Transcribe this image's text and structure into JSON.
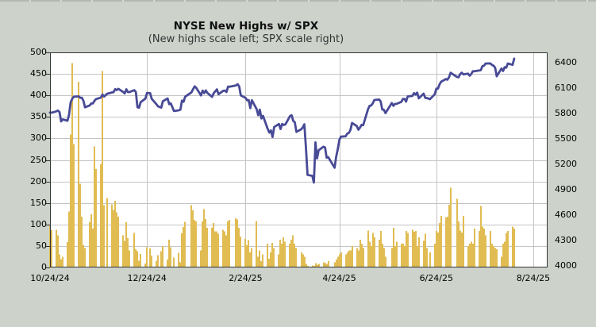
{
  "page": {
    "background": "#cdd3cb"
  },
  "chart_data": {
    "type": "combo",
    "title": "NYSE New Highs w/ SPX",
    "subtitle": "(New highs scale left; SPX scale right)",
    "grid": true,
    "legend": "none",
    "series": [
      {
        "name": "NYSE New Highs",
        "type": "bar",
        "color": "#e0bc52",
        "axis": "left"
      },
      {
        "name": "SPX",
        "type": "line",
        "color": "#484a96",
        "axis": "right"
      }
    ],
    "left_axis": {
      "min": 0,
      "max": 500,
      "ticks": [
        500,
        450,
        400,
        350,
        300,
        250,
        200,
        150,
        100,
        50,
        0
      ]
    },
    "right_axis": {
      "min": 3980,
      "max": 6520,
      "ticks": [
        6400,
        6100,
        5800,
        5500,
        5200,
        4900,
        4600,
        4300,
        4000
      ]
    },
    "x_axis": {
      "start": "10/24/24",
      "end": "9/2/25",
      "tick_labels": [
        "10/24/24",
        "12/24/24",
        "2/24/25",
        "4/24/25",
        "6/24/25",
        "8/24/25"
      ]
    },
    "dates": [
      "10/24/24",
      "10/25/24",
      "10/28/24",
      "10/29/24",
      "10/30/24",
      "10/31/24",
      "11/1/24",
      "11/4/24",
      "11/5/24",
      "11/6/24",
      "11/7/24",
      "11/8/24",
      "11/11/24",
      "11/12/24",
      "11/13/24",
      "11/14/24",
      "11/15/24",
      "11/18/24",
      "11/19/24",
      "11/20/24",
      "11/21/24",
      "11/22/24",
      "11/25/24",
      "11/26/24",
      "11/27/24",
      "11/29/24",
      "12/2/24",
      "12/3/24",
      "12/4/24",
      "12/5/24",
      "12/6/24",
      "12/9/24",
      "12/10/24",
      "12/11/24",
      "12/12/24",
      "12/13/24",
      "12/16/24",
      "12/17/24",
      "12/18/24",
      "12/19/24",
      "12/20/24",
      "12/23/24",
      "12/24/24",
      "12/26/24",
      "12/27/24",
      "12/30/24",
      "12/31/24",
      "1/2/25",
      "1/3/25",
      "1/6/25",
      "1/7/25",
      "1/8/25",
      "1/10/25",
      "1/13/25",
      "1/14/25",
      "1/15/25",
      "1/16/25",
      "1/17/25",
      "1/21/25",
      "1/22/25",
      "1/23/25",
      "1/24/25",
      "1/27/25",
      "1/28/25",
      "1/29/25",
      "1/30/25",
      "1/31/25",
      "2/3/25",
      "2/4/25",
      "2/5/25",
      "2/6/25",
      "2/7/25",
      "2/10/25",
      "2/11/25",
      "2/12/25",
      "2/13/25",
      "2/14/25",
      "2/18/25",
      "2/19/25",
      "2/20/25",
      "2/21/25",
      "2/24/25",
      "2/25/25",
      "2/26/25",
      "2/27/25",
      "2/28/25",
      "3/3/25",
      "3/4/25",
      "3/5/25",
      "3/6/25",
      "3/7/25",
      "3/10/25",
      "3/11/25",
      "3/12/25",
      "3/13/25",
      "3/14/25",
      "3/17/25",
      "3/18/25",
      "3/19/25",
      "3/20/25",
      "3/21/25",
      "3/24/25",
      "3/25/25",
      "3/26/25",
      "3/27/25",
      "3/28/25",
      "3/31/25",
      "4/1/25",
      "4/2/25",
      "4/3/25",
      "4/4/25",
      "4/7/25",
      "4/8/25",
      "4/9/25",
      "4/10/25",
      "4/11/25",
      "4/14/25",
      "4/15/25",
      "4/16/25",
      "4/17/25",
      "4/21/25",
      "4/22/25",
      "4/23/25",
      "4/24/25",
      "4/25/25",
      "4/28/25",
      "4/29/25",
      "4/30/25",
      "5/1/25",
      "5/2/25",
      "5/5/25",
      "5/6/25",
      "5/7/25",
      "5/8/25",
      "5/9/25",
      "5/12/25",
      "5/13/25",
      "5/14/25",
      "5/15/25",
      "5/16/25",
      "5/19/25",
      "5/20/25",
      "5/21/25",
      "5/22/25",
      "5/23/25",
      "5/27/25",
      "5/28/25",
      "5/29/25",
      "5/30/25",
      "6/2/25",
      "6/3/25",
      "6/4/25",
      "6/5/25",
      "6/6/25",
      "6/9/25",
      "6/10/25",
      "6/11/25",
      "6/12/25",
      "6/13/25",
      "6/16/25",
      "6/17/25",
      "6/18/25",
      "6/20/25",
      "6/23/25",
      "6/24/25",
      "6/25/25",
      "6/26/25",
      "6/27/25",
      "6/30/25",
      "7/1/25",
      "7/2/25",
      "7/3/25",
      "7/7/25",
      "7/8/25",
      "7/9/25",
      "7/10/25",
      "7/11/25",
      "7/14/25",
      "7/15/25",
      "7/16/25",
      "7/17/25",
      "7/18/25",
      "7/21/25",
      "7/22/25",
      "7/23/25",
      "7/24/25",
      "7/25/25",
      "7/28/25",
      "7/29/25",
      "7/30/25",
      "7/31/25",
      "8/1/25",
      "8/4/25",
      "8/5/25",
      "8/6/25",
      "8/7/25",
      "8/8/25",
      "8/11/25",
      "8/12/25"
    ],
    "new_highs": [
      100,
      87,
      88,
      75,
      30,
      19,
      25,
      59,
      130,
      309,
      475,
      287,
      432,
      195,
      118,
      53,
      45,
      105,
      124,
      90,
      281,
      229,
      240,
      457,
      145,
      161,
      147,
      134,
      155,
      128,
      118,
      75,
      62,
      105,
      68,
      40,
      80,
      42,
      38,
      16,
      31,
      9,
      47,
      44,
      28,
      16,
      29,
      38,
      50,
      18,
      65,
      47,
      23,
      34,
      12,
      79,
      94,
      106,
      145,
      133,
      111,
      107,
      40,
      107,
      136,
      113,
      92,
      92,
      103,
      84,
      84,
      78,
      88,
      84,
      75,
      107,
      111,
      114,
      112,
      92,
      72,
      66,
      52,
      64,
      35,
      45,
      108,
      25,
      40,
      15,
      30,
      55,
      20,
      35,
      57,
      45,
      30,
      65,
      55,
      70,
      60,
      55,
      65,
      75,
      55,
      45,
      35,
      30,
      25,
      8,
      4,
      5,
      4,
      10,
      6,
      8,
      12,
      10,
      8,
      15,
      12,
      18,
      25,
      30,
      35,
      30,
      35,
      40,
      40,
      50,
      45,
      40,
      65,
      55,
      45,
      86,
      60,
      50,
      80,
      70,
      65,
      85,
      55,
      45,
      25,
      45,
      92,
      50,
      60,
      55,
      55,
      50,
      85,
      80,
      88,
      83,
      85,
      50,
      70,
      62,
      78,
      45,
      35,
      55,
      85,
      81,
      103,
      120,
      116,
      118,
      146,
      185,
      160,
      107,
      86,
      81,
      120,
      50,
      55,
      60,
      55,
      90,
      85,
      143,
      95,
      90,
      75,
      85,
      55,
      50,
      45,
      42,
      25,
      55,
      60,
      80,
      85,
      95,
      90,
      140
    ],
    "spx": [
      5810,
      5808,
      5824,
      5833,
      5814,
      5705,
      5729,
      5713,
      5783,
      5929,
      5973,
      5996,
      6001,
      5984,
      5985,
      5949,
      5871,
      5894,
      5917,
      5917,
      5949,
      5969,
      5987,
      6022,
      5998,
      6032,
      6047,
      6050,
      6086,
      6075,
      6090,
      6053,
      6035,
      6084,
      6051,
      6051,
      6074,
      6051,
      5872,
      5867,
      5931,
      5974,
      6040,
      6038,
      5971,
      5907,
      5882,
      5869,
      5943,
      5975,
      5909,
      5918,
      5827,
      5836,
      5843,
      5950,
      5937,
      5997,
      6049,
      6086,
      6119,
      6101,
      6012,
      6068,
      6039,
      6071,
      6041,
      5995,
      6038,
      6061,
      6083,
      6026,
      6066,
      6069,
      6052,
      6115,
      6115,
      6130,
      6144,
      6118,
      6013,
      5983,
      5955,
      5956,
      5862,
      5955,
      5850,
      5778,
      5843,
      5739,
      5770,
      5615,
      5572,
      5599,
      5521,
      5639,
      5675,
      5615,
      5675,
      5663,
      5668,
      5768,
      5777,
      5712,
      5693,
      5581,
      5612,
      5633,
      5671,
      5396,
      5074,
      5062,
      4983,
      5457,
      5268,
      5363,
      5406,
      5397,
      5276,
      5283,
      5158,
      5288,
      5376,
      5485,
      5525,
      5529,
      5561,
      5569,
      5604,
      5687,
      5650,
      5607,
      5631,
      5664,
      5660,
      5844,
      5887,
      5893,
      5916,
      5958,
      5963,
      5940,
      5845,
      5842,
      5803,
      5922,
      5889,
      5912,
      5912,
      5936,
      5970,
      5971,
      5939,
      6000,
      6006,
      6039,
      6022,
      6045,
      5977,
      6033,
      5983,
      5981,
      5968,
      6025,
      6092,
      6092,
      6141,
      6173,
      6205,
      6198,
      6227,
      6279,
      6230,
      6226,
      6263,
      6280,
      6260,
      6269,
      6244,
      6264,
      6297,
      6297,
      6306,
      6310,
      6359,
      6363,
      6389,
      6390,
      6371,
      6363,
      6339,
      6238,
      6330,
      6300,
      6345,
      6340,
      6389,
      6373,
      6446
    ]
  }
}
